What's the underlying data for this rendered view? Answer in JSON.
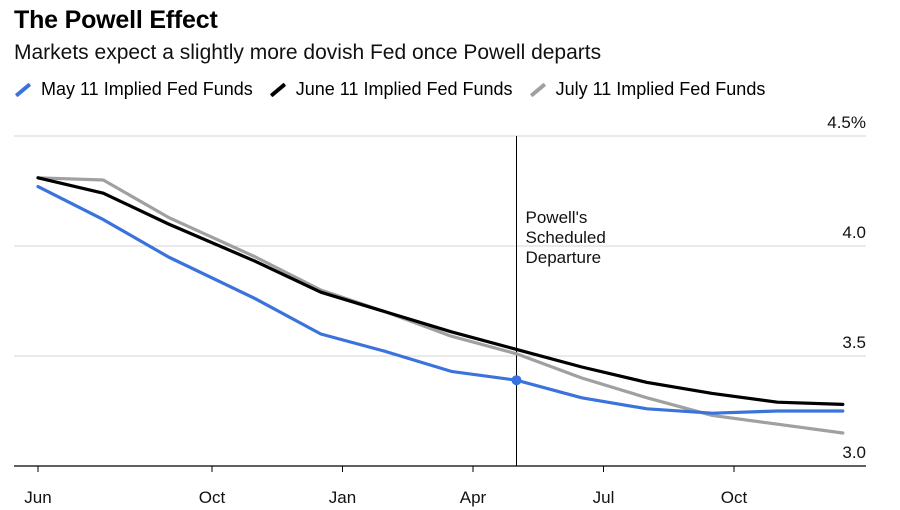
{
  "chart_data": {
    "type": "line",
    "title": "The Powell Effect",
    "subtitle": "Markets expect a slightly more dovish Fed once Powell departs",
    "xlabel": "",
    "ylabel": "",
    "ylim": [
      3.0,
      4.5
    ],
    "y_ticks": [
      {
        "value": 4.5,
        "label": "4.5%"
      },
      {
        "value": 4.0,
        "label": "4.0"
      },
      {
        "value": 3.5,
        "label": "3.5"
      },
      {
        "value": 3.0,
        "label": "3.0"
      }
    ],
    "x_ticks": [
      {
        "value": 0,
        "label": "Jun"
      },
      {
        "value": 4,
        "label": "Oct"
      },
      {
        "value": 7,
        "label": "Jan"
      },
      {
        "value": 10,
        "label": "Apr"
      },
      {
        "value": 13,
        "label": "Jul"
      },
      {
        "value": 16,
        "label": "Oct"
      }
    ],
    "x": [
      0,
      1.5,
      3,
      5,
      6.5,
      8,
      9.5,
      11,
      12.5,
      14,
      15.5,
      17,
      18.5
    ],
    "series": [
      {
        "name": "May 11 Implied Fed Funds",
        "color": "#3b73dd",
        "values": [
          4.27,
          4.12,
          3.95,
          3.76,
          3.6,
          3.52,
          3.43,
          3.39,
          3.31,
          3.26,
          3.24,
          3.25,
          3.25
        ]
      },
      {
        "name": "June 11 Implied Fed Funds",
        "color": "#000000",
        "values": [
          4.31,
          4.24,
          4.1,
          3.93,
          3.79,
          3.7,
          3.61,
          3.53,
          3.45,
          3.38,
          3.33,
          3.29,
          3.28
        ]
      },
      {
        "name": "July 11 Implied Fed Funds",
        "color": "#a0a0a0",
        "values": [
          4.31,
          4.3,
          4.13,
          3.95,
          3.8,
          3.7,
          3.59,
          3.51,
          3.4,
          3.31,
          3.23,
          3.19,
          3.15
        ]
      }
    ],
    "marker": {
      "series": 0,
      "x": 11,
      "value": 3.39
    },
    "annotation": {
      "x": 11,
      "text_lines": [
        "Powell's",
        "Scheduled",
        "Departure"
      ]
    },
    "grid": true,
    "legend_position": "top-left"
  }
}
